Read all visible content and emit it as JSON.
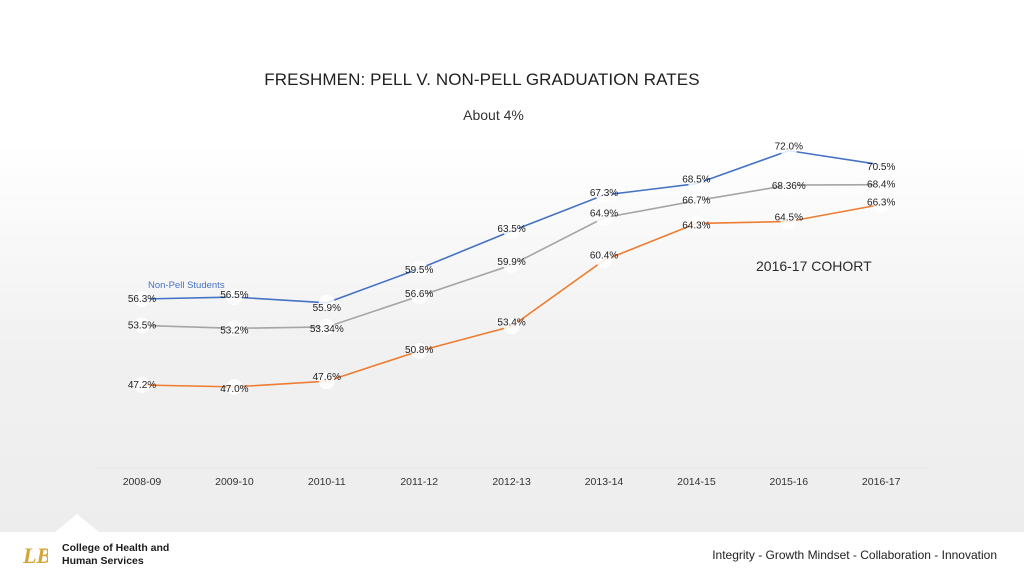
{
  "chart_data": {
    "type": "line",
    "title": "FRESHMEN: PELL V. NON-PELL GRADUATION RATES",
    "subtitle": "About 4%",
    "annotation": "2016-17 COHORT",
    "categories": [
      "2008-09",
      "2009-10",
      "2010-11",
      "2011-12",
      "2012-13",
      "2013-14",
      "2014-15",
      "2015-16",
      "2016-17"
    ],
    "ylim": [
      40,
      75
    ],
    "grid": false,
    "series": [
      {
        "name": "Non-Pell Students",
        "color": "#4472c4",
        "values": [
          56.3,
          56.5,
          55.9,
          59.5,
          63.5,
          67.3,
          68.5,
          72.0,
          70.5
        ],
        "labels": [
          "56.3%",
          "56.5%",
          "55.9%",
          "59.5%",
          "63.5%",
          "67.3%",
          "68.5%",
          "72.0%",
          "70.5%"
        ]
      },
      {
        "name": "",
        "color": "#a5a5a5",
        "values": [
          53.5,
          53.2,
          53.34,
          56.6,
          59.9,
          64.9,
          66.7,
          68.36,
          68.4
        ],
        "labels": [
          "53.5%",
          "53.2%",
          "53.34%",
          "56.6%",
          "59.9%",
          "64.9%",
          "66.7%",
          "68.36%",
          "68.4%"
        ]
      },
      {
        "name": "",
        "color": "#ed7d31",
        "values": [
          47.2,
          47.0,
          47.6,
          50.8,
          53.4,
          60.4,
          64.3,
          64.5,
          66.3
        ],
        "labels": [
          "47.2%",
          "47.0%",
          "47.6%",
          "50.8%",
          "53.4%",
          "60.4%",
          "64.3%",
          "64.5%",
          "66.3%"
        ]
      }
    ]
  },
  "footer": {
    "college_line1": "College of Health and",
    "college_line2": "Human Services",
    "values": "Integrity - Growth Mindset - Collaboration - Innovation",
    "logo_text": "LB",
    "logo_color": "#d4a537"
  }
}
